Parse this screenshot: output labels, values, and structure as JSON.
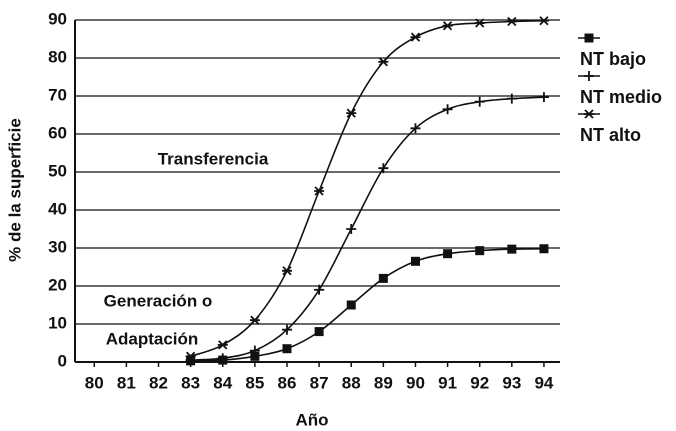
{
  "chart_data": {
    "type": "line",
    "xlabel": "Año",
    "ylabel": "% de la superficie",
    "annotations": [
      "Transferencia",
      "Generación o",
      "Adaptación"
    ],
    "x": [
      83,
      84,
      85,
      86,
      87,
      88,
      89,
      90,
      91,
      92,
      93,
      94
    ],
    "series": [
      {
        "name": "NT bajo",
        "color": "#111111",
        "marker": "square",
        "values": [
          0.3,
          0.5,
          1.5,
          3.5,
          8,
          15,
          22,
          26.5,
          28.5,
          29.3,
          29.7,
          29.8
        ]
      },
      {
        "name": "NT medio",
        "color": "#111111",
        "marker": "plus",
        "values": [
          0.5,
          1,
          3,
          8.5,
          19,
          35,
          51,
          61.5,
          66.5,
          68.5,
          69.3,
          69.7
        ]
      },
      {
        "name": "NT alto",
        "color": "#111111",
        "marker": "star",
        "values": [
          1.5,
          4.5,
          11,
          24,
          45,
          65.5,
          79,
          85.5,
          88.5,
          89.2,
          89.6,
          89.8
        ]
      }
    ],
    "xlim": [
      79.4,
      94.5
    ],
    "xticks": [
      80,
      81,
      82,
      83,
      84,
      85,
      86,
      87,
      88,
      89,
      90,
      91,
      92,
      93,
      94
    ],
    "ylim": [
      0,
      90
    ],
    "yticks": [
      0,
      10,
      20,
      30,
      40,
      50,
      60,
      70,
      80,
      90
    ],
    "grid": true,
    "legend": "right"
  }
}
